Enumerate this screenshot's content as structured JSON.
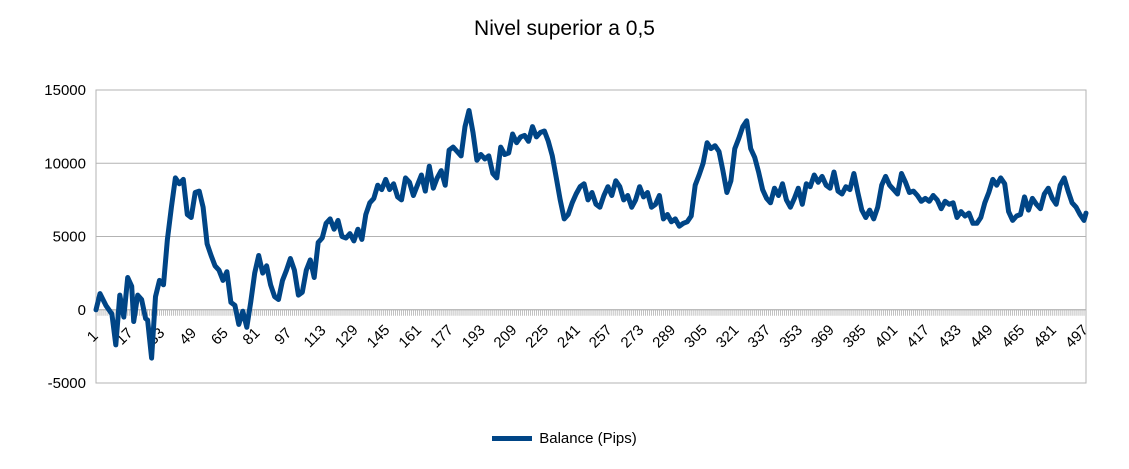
{
  "chart_data": {
    "type": "line",
    "title": "Nivel superior a 0,5",
    "xlabel": "",
    "ylabel": "",
    "ylim": [
      -5000,
      15000
    ],
    "yticks": [
      "15000",
      "10000",
      "5000",
      "0",
      "-5000"
    ],
    "xlim": [
      1,
      500
    ],
    "xtick_labels": [
      "1",
      "17",
      "33",
      "49",
      "65",
      "81",
      "97",
      "113",
      "129",
      "145",
      "161",
      "177",
      "193",
      "209",
      "225",
      "241",
      "257",
      "273",
      "289",
      "305",
      "321",
      "337",
      "353",
      "369",
      "385",
      "401",
      "417",
      "433",
      "449",
      "465",
      "481",
      "497"
    ],
    "grid": "horizontal",
    "legend_position": "bottom",
    "series": [
      {
        "name": "Balance (Pips)",
        "color": "#004586",
        "points": [
          [
            1,
            0
          ],
          [
            3,
            1100
          ],
          [
            6,
            300
          ],
          [
            9,
            -300
          ],
          [
            11,
            -2400
          ],
          [
            13,
            1000
          ],
          [
            15,
            -500
          ],
          [
            17,
            2200
          ],
          [
            19,
            1600
          ],
          [
            20,
            -800
          ],
          [
            22,
            1000
          ],
          [
            24,
            700
          ],
          [
            26,
            -600
          ],
          [
            27,
            -700
          ],
          [
            29,
            -3300
          ],
          [
            31,
            900
          ],
          [
            33,
            2000
          ],
          [
            35,
            1700
          ],
          [
            37,
            4800
          ],
          [
            39,
            7000
          ],
          [
            41,
            9000
          ],
          [
            43,
            8600
          ],
          [
            45,
            8900
          ],
          [
            47,
            6500
          ],
          [
            49,
            6300
          ],
          [
            51,
            8000
          ],
          [
            53,
            8100
          ],
          [
            55,
            7000
          ],
          [
            57,
            4500
          ],
          [
            59,
            3700
          ],
          [
            61,
            3000
          ],
          [
            63,
            2700
          ],
          [
            65,
            2000
          ],
          [
            67,
            2600
          ],
          [
            69,
            500
          ],
          [
            71,
            300
          ],
          [
            73,
            -1000
          ],
          [
            75,
            -100
          ],
          [
            77,
            -1200
          ],
          [
            79,
            500
          ],
          [
            81,
            2500
          ],
          [
            83,
            3700
          ],
          [
            85,
            2500
          ],
          [
            87,
            3000
          ],
          [
            89,
            1700
          ],
          [
            91,
            900
          ],
          [
            93,
            700
          ],
          [
            95,
            2000
          ],
          [
            97,
            2700
          ],
          [
            99,
            3500
          ],
          [
            101,
            2700
          ],
          [
            103,
            1000
          ],
          [
            105,
            1200
          ],
          [
            107,
            2700
          ],
          [
            109,
            3400
          ],
          [
            111,
            2200
          ],
          [
            113,
            4600
          ],
          [
            115,
            4900
          ],
          [
            117,
            5900
          ],
          [
            119,
            6200
          ],
          [
            121,
            5500
          ],
          [
            123,
            6100
          ],
          [
            125,
            5000
          ],
          [
            127,
            4900
          ],
          [
            129,
            5200
          ],
          [
            131,
            4700
          ],
          [
            133,
            5500
          ],
          [
            135,
            4800
          ],
          [
            137,
            6500
          ],
          [
            139,
            7300
          ],
          [
            141,
            7600
          ],
          [
            143,
            8500
          ],
          [
            145,
            8200
          ],
          [
            147,
            8900
          ],
          [
            149,
            8200
          ],
          [
            151,
            8600
          ],
          [
            153,
            7700
          ],
          [
            155,
            7500
          ],
          [
            157,
            9000
          ],
          [
            159,
            8700
          ],
          [
            161,
            7800
          ],
          [
            163,
            8500
          ],
          [
            165,
            9200
          ],
          [
            167,
            8100
          ],
          [
            169,
            9800
          ],
          [
            171,
            8300
          ],
          [
            173,
            9000
          ],
          [
            175,
            9500
          ],
          [
            177,
            8500
          ],
          [
            179,
            10900
          ],
          [
            181,
            11100
          ],
          [
            183,
            10800
          ],
          [
            185,
            10500
          ],
          [
            187,
            12500
          ],
          [
            189,
            13600
          ],
          [
            191,
            12100
          ],
          [
            193,
            10200
          ],
          [
            195,
            10600
          ],
          [
            197,
            10300
          ],
          [
            199,
            10500
          ],
          [
            201,
            9300
          ],
          [
            203,
            9000
          ],
          [
            205,
            11100
          ],
          [
            207,
            10600
          ],
          [
            209,
            10700
          ],
          [
            211,
            12000
          ],
          [
            213,
            11400
          ],
          [
            215,
            11800
          ],
          [
            217,
            11900
          ],
          [
            219,
            11500
          ],
          [
            221,
            12500
          ],
          [
            223,
            11800
          ],
          [
            225,
            12100
          ],
          [
            227,
            12200
          ],
          [
            229,
            11500
          ],
          [
            231,
            10500
          ],
          [
            233,
            9000
          ],
          [
            235,
            7500
          ],
          [
            237,
            6200
          ],
          [
            239,
            6500
          ],
          [
            241,
            7300
          ],
          [
            243,
            7900
          ],
          [
            245,
            8400
          ],
          [
            247,
            8600
          ],
          [
            249,
            7500
          ],
          [
            251,
            8000
          ],
          [
            253,
            7200
          ],
          [
            255,
            7000
          ],
          [
            257,
            7800
          ],
          [
            259,
            8400
          ],
          [
            261,
            7800
          ],
          [
            263,
            8800
          ],
          [
            265,
            8400
          ],
          [
            267,
            7500
          ],
          [
            269,
            7800
          ],
          [
            271,
            7000
          ],
          [
            273,
            7500
          ],
          [
            275,
            8400
          ],
          [
            277,
            7700
          ],
          [
            279,
            8000
          ],
          [
            281,
            7000
          ],
          [
            283,
            7200
          ],
          [
            285,
            7800
          ],
          [
            287,
            6200
          ],
          [
            289,
            6500
          ],
          [
            291,
            6000
          ],
          [
            293,
            6200
          ],
          [
            295,
            5700
          ],
          [
            297,
            5900
          ],
          [
            299,
            6000
          ],
          [
            301,
            6400
          ],
          [
            303,
            8500
          ],
          [
            305,
            9200
          ],
          [
            307,
            10000
          ],
          [
            309,
            11400
          ],
          [
            311,
            11000
          ],
          [
            313,
            11200
          ],
          [
            315,
            10800
          ],
          [
            317,
            9500
          ],
          [
            319,
            8000
          ],
          [
            321,
            8800
          ],
          [
            323,
            11000
          ],
          [
            325,
            11700
          ],
          [
            327,
            12500
          ],
          [
            329,
            12900
          ],
          [
            331,
            11000
          ],
          [
            333,
            10400
          ],
          [
            335,
            9400
          ],
          [
            337,
            8200
          ],
          [
            339,
            7600
          ],
          [
            341,
            7300
          ],
          [
            343,
            8300
          ],
          [
            345,
            7800
          ],
          [
            347,
            8600
          ],
          [
            349,
            7500
          ],
          [
            351,
            7000
          ],
          [
            353,
            7600
          ],
          [
            355,
            8300
          ],
          [
            357,
            7200
          ],
          [
            359,
            8600
          ],
          [
            361,
            8400
          ],
          [
            363,
            9200
          ],
          [
            365,
            8700
          ],
          [
            367,
            9100
          ],
          [
            369,
            8500
          ],
          [
            371,
            8300
          ],
          [
            373,
            9400
          ],
          [
            375,
            8100
          ],
          [
            377,
            7900
          ],
          [
            379,
            8400
          ],
          [
            381,
            8200
          ],
          [
            383,
            9300
          ],
          [
            385,
            8000
          ],
          [
            387,
            6800
          ],
          [
            389,
            6300
          ],
          [
            391,
            6800
          ],
          [
            393,
            6200
          ],
          [
            395,
            7000
          ],
          [
            397,
            8500
          ],
          [
            399,
            9100
          ],
          [
            401,
            8500
          ],
          [
            403,
            8200
          ],
          [
            405,
            7900
          ],
          [
            407,
            9300
          ],
          [
            409,
            8700
          ],
          [
            411,
            8000
          ],
          [
            413,
            8100
          ],
          [
            415,
            7800
          ],
          [
            417,
            7400
          ],
          [
            419,
            7600
          ],
          [
            421,
            7400
          ],
          [
            423,
            7800
          ],
          [
            425,
            7500
          ],
          [
            427,
            6900
          ],
          [
            429,
            7400
          ],
          [
            431,
            7200
          ],
          [
            433,
            7300
          ],
          [
            435,
            6300
          ],
          [
            437,
            6700
          ],
          [
            439,
            6400
          ],
          [
            441,
            6600
          ],
          [
            443,
            5900
          ],
          [
            445,
            5900
          ],
          [
            447,
            6300
          ],
          [
            449,
            7300
          ],
          [
            451,
            8000
          ],
          [
            453,
            8900
          ],
          [
            455,
            8500
          ],
          [
            457,
            9000
          ],
          [
            459,
            8600
          ],
          [
            461,
            6700
          ],
          [
            463,
            6100
          ],
          [
            465,
            6400
          ],
          [
            467,
            6500
          ],
          [
            469,
            7700
          ],
          [
            471,
            6800
          ],
          [
            473,
            7600
          ],
          [
            475,
            7200
          ],
          [
            477,
            6900
          ],
          [
            479,
            7900
          ],
          [
            481,
            8300
          ],
          [
            483,
            7600
          ],
          [
            485,
            7200
          ],
          [
            487,
            8500
          ],
          [
            489,
            9000
          ],
          [
            491,
            8100
          ],
          [
            493,
            7300
          ],
          [
            495,
            7000
          ],
          [
            497,
            6500
          ],
          [
            499,
            6100
          ],
          [
            500,
            6600
          ]
        ]
      }
    ]
  }
}
